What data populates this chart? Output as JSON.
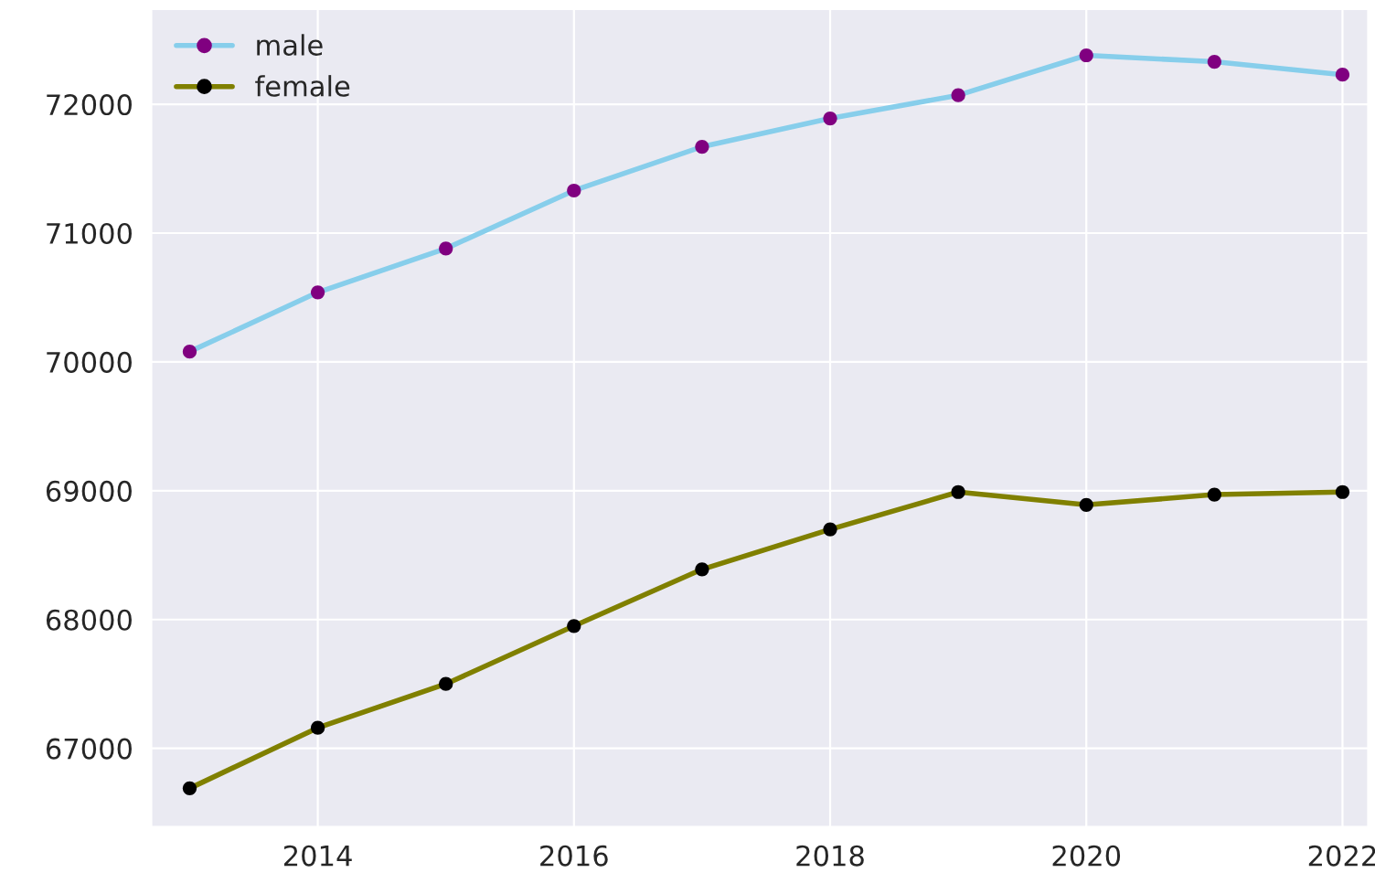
{
  "chart_data": {
    "type": "line",
    "x": [
      2013,
      2014,
      2015,
      2016,
      2017,
      2018,
      2019,
      2020,
      2021,
      2022
    ],
    "series": [
      {
        "name": "male",
        "color": "#87ceeb",
        "colors": [
          "#800080",
          "#800080",
          "#800080",
          "#800080",
          "#800080",
          "#800080",
          "#800080",
          "#800080",
          "#800080",
          "#800080"
        ],
        "values": [
          70080,
          70540,
          70880,
          71330,
          71670,
          71890,
          72070,
          72380,
          72330,
          72230
        ]
      },
      {
        "name": "female",
        "color": "#808000",
        "colors": [
          "#000000",
          "#000000",
          "#000000",
          "#000000",
          "#000000",
          "#000000",
          "#000000",
          "#000000",
          "#000000",
          "#000000"
        ],
        "values": [
          66690,
          67160,
          67500,
          67950,
          68390,
          68700,
          68990,
          68890,
          68970,
          68990
        ]
      }
    ],
    "xlim": [
      2012.7,
      2022.2
    ],
    "xticks": [
      2014,
      2016,
      2018,
      2020,
      2022
    ],
    "ylim": [
      66390,
      72740
    ],
    "yticks": [
      67000,
      68000,
      69000,
      70000,
      71000,
      72000
    ],
    "grid": true,
    "legend": "top left",
    "marker": "circle",
    "line_style": "solid"
  }
}
